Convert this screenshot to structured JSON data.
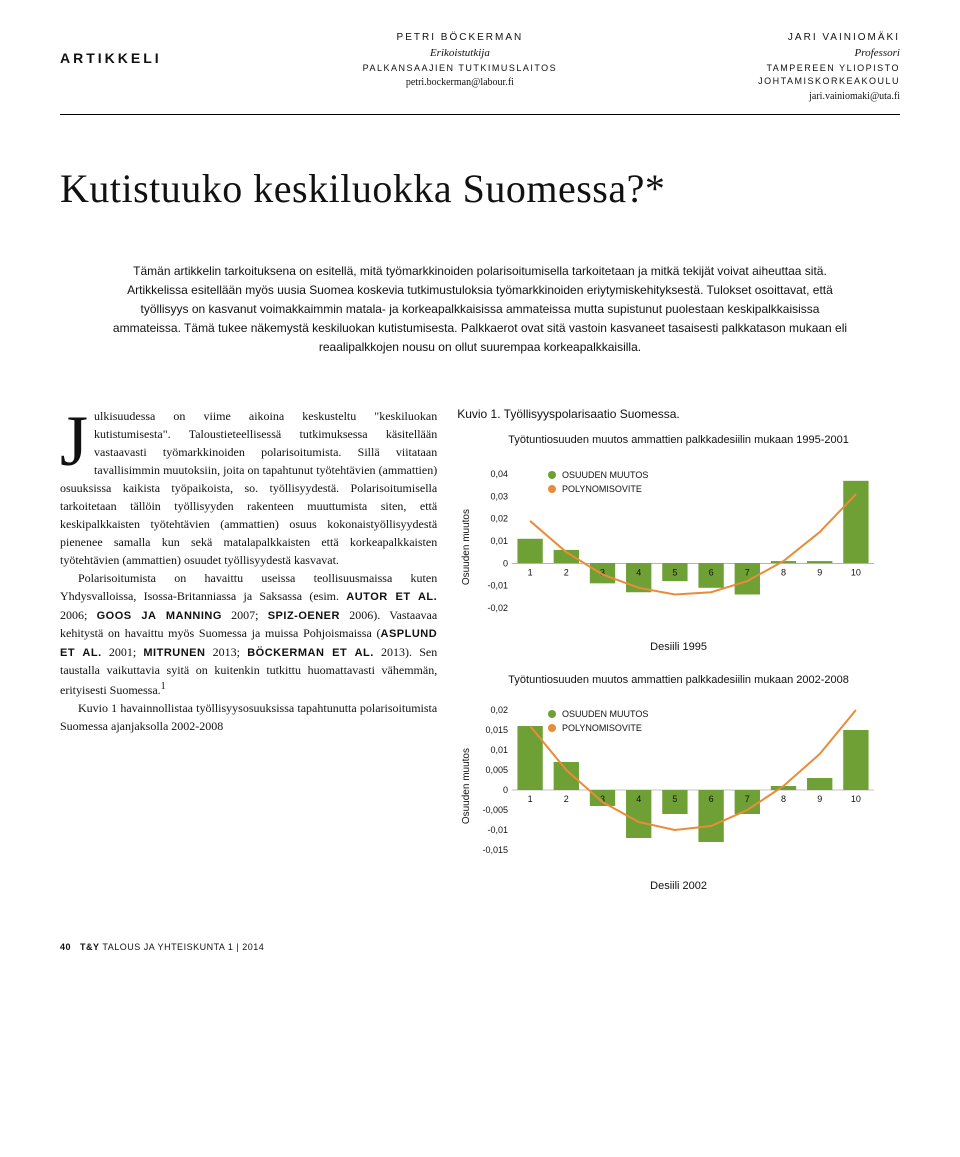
{
  "header": {
    "label": "ARTIKKELI",
    "author1": {
      "name": "PETRI BÖCKERMAN",
      "role": "Erikoistutkija",
      "inst": "PALKANSAAJIEN TUTKIMUSLAITOS",
      "email": "petri.bockerman@labour.fi"
    },
    "author2": {
      "name": "JARI VAINIOMÄKI",
      "role": "Professori",
      "inst1": "TAMPEREEN YLIOPISTO",
      "inst2": "JOHTAMISKORKEAKOULU",
      "email": "jari.vainiomaki@uta.fi"
    }
  },
  "title": "Kutistuuko keskiluokka Suomessa?*",
  "abstract": "Tämän artikkelin tarkoituksena on esitellä, mitä työmarkkinoiden polarisoitumisella tarkoitetaan ja mitkä tekijät voivat aiheuttaa sitä. Artikkelissa esitellään myös uusia Suomea koskevia tutkimustuloksia työmarkkinoiden eriytymiskehityksestä. Tulokset osoittavat, että työllisyys on kasvanut voimakkaimmin matala- ja korkeapalkkaisissa ammateissa mutta supistunut puolestaan keskipalkkaisissa ammateissa. Tämä tukee näkemystä keskiluokan kutistumisesta. Palkkaerot ovat sitä vastoin kasvaneet tasaisesti palkkatason mukaan eli reaalipalkkojen nousu on ollut suurempaa korkeapalkkaisilla.",
  "body": {
    "p1a": "Julkisuudessa on viime aikoina keskusteltu \"keskiluokan kutistumisesta\". Taloustieteellisessä tutkimuksessa käsitellään vastaavasti työmarkkinoiden polarisoitumista. Sillä viitataan tavallisimmin muutoksiin, joita on tapahtunut työtehtävien (ammattien) osuuksissa kaikista työpaikoista, so. työllisyydestä. Polarisoitumisella tarkoitetaan tällöin työllisyyden rakenteen muuttumista siten, että keskipalkkaisten työtehtävien (ammattien) osuus kokonaistyöllisyydestä pienenee samalla kun sekä matalapalkkaisten että korkeapalkkaisten työtehtävien (ammattien) osuudet työllisyydestä kasvavat.",
    "p2a": "Polarisoitumista on havaittu useissa teollisuusmaissa kuten Yhdysvalloissa, Isossa-Britanniassa ja Saksassa (esim. ",
    "p2b": "AUTOR ET AL.",
    "p2c": " 2006; ",
    "p2d": "GOOS JA MANNING",
    "p2e": " 2007; ",
    "p2f": "SPIZ-OENER",
    "p2g": " 2006). Vastaavaa kehitystä on havaittu myös Suomessa ja muissa Pohjoismaissa (",
    "p2h": "ASPLUND ET AL.",
    "p2i": " 2001; ",
    "p2j": "MITRUNEN",
    "p2k": " 2013; ",
    "p2l": "BÖCKERMAN ET AL.",
    "p2m": " 2013). Sen taustalla vaikuttavia syitä on kuitenkin tutkittu huomattavasti vähemmän, erityisesti Suomessa.",
    "p2n": "1",
    "p3": "Kuvio 1 havainnollistaa työllisyysosuuksissa tapahtunutta polarisoitumista Suomessa ajanjaksolla 2002-2008"
  },
  "figure": {
    "caption": "Kuvio 1. Työllisyyspolarisaatio Suomessa.",
    "chart1": {
      "title": "Työtuntiosuuden muutos ammattien palkkadesiilin mukaan 1995-2001",
      "ylabel": "Osuuden muutos",
      "xlabel": "Desiili 1995",
      "categories": [
        1,
        2,
        3,
        4,
        5,
        6,
        7,
        8,
        9,
        10
      ],
      "bars": [
        0.011,
        0.006,
        -0.009,
        -0.013,
        -0.008,
        -0.011,
        -0.014,
        0.001,
        0.001,
        0.037
      ],
      "poly": [
        0.019,
        0.005,
        -0.005,
        -0.011,
        -0.014,
        -0.013,
        -0.008,
        0.001,
        0.014,
        0.031
      ],
      "yticks": [
        -0.02,
        -0.01,
        0,
        0.01,
        0.02,
        0.03,
        0.04
      ],
      "ytick_labels": [
        "-0,02",
        "-0,01",
        "0",
        "0,01",
        "0,02",
        "0,03",
        "0,04"
      ],
      "ylim": [
        -0.025,
        0.045
      ],
      "bar_color": "#6fa036",
      "poly_color": "#e98c3a",
      "legend1": "OSUUDEN MUUTOS",
      "legend2": "POLYNOMISOVITE"
    },
    "chart2": {
      "title": "Työtuntiosuuden muutos ammattien palkkadesiilin mukaan 2002-2008",
      "ylabel": "Osuuden muutos",
      "xlabel": "Desiili 2002",
      "categories": [
        1,
        2,
        3,
        4,
        5,
        6,
        7,
        8,
        9,
        10
      ],
      "bars": [
        0.016,
        0.007,
        -0.004,
        -0.012,
        -0.006,
        -0.013,
        -0.006,
        0.001,
        0.003,
        0.015
      ],
      "poly": [
        0.016,
        0.005,
        -0.003,
        -0.008,
        -0.01,
        -0.009,
        -0.005,
        0.001,
        0.009,
        0.02
      ],
      "yticks": [
        -0.015,
        -0.01,
        -0.005,
        0,
        0.005,
        0.01,
        0.015,
        0.02
      ],
      "ytick_labels": [
        "-0,015",
        "-0,01",
        "-0,005",
        "0",
        "0,005",
        "0,01",
        "0,015",
        "0,02"
      ],
      "ylim": [
        -0.017,
        0.022
      ],
      "bar_color": "#6fa036",
      "poly_color": "#e98c3a",
      "legend1": "OSUUDEN MUUTOS",
      "legend2": "POLYNOMISOVITE"
    }
  },
  "footer": {
    "page": "40",
    "mag": "T&Y",
    "rest": "TALOUS JA YHTEISKUNTA   1 | 2014"
  },
  "colors": {
    "text": "#111111",
    "rule": "#000000",
    "bar": "#6fa036",
    "line": "#e98c3a",
    "bg": "#ffffff"
  }
}
